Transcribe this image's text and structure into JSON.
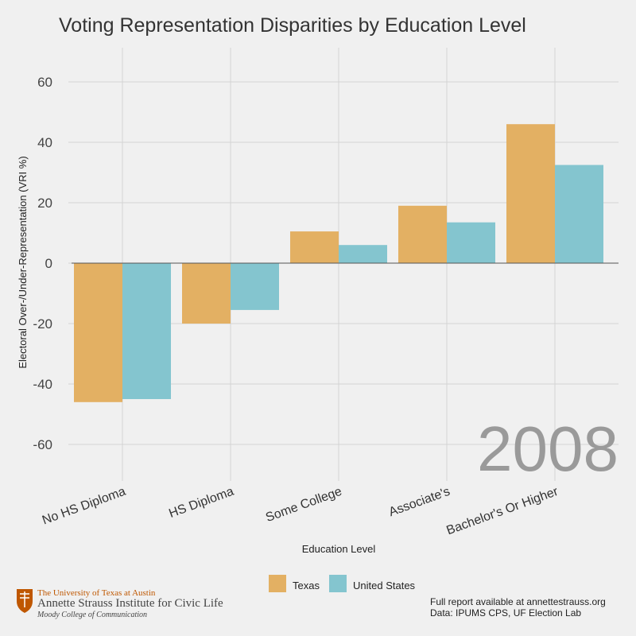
{
  "chart_data": {
    "type": "bar",
    "title": "Voting Representation Disparities by Education Level",
    "xlabel": "Education Level",
    "ylabel": "Electoral Over-/Under-Representation (VRI %)",
    "categories": [
      "No HS Diploma",
      "HS Diploma",
      "Some College",
      "Associate's",
      "Bachelor's Or Higher"
    ],
    "series": [
      {
        "name": "Texas",
        "color": "#e3b063",
        "values": [
          -46,
          -20,
          10.5,
          19,
          46
        ]
      },
      {
        "name": "United States",
        "color": "#84c5cf",
        "values": [
          -45,
          -15.5,
          6,
          13.5,
          32.5
        ]
      }
    ],
    "ylim": [
      -72,
      72
    ],
    "yticks": [
      60,
      40,
      20,
      0,
      -20,
      -40,
      -60
    ],
    "grid": true,
    "legend_position": "bottom",
    "annotation": "2008"
  },
  "footer": {
    "report": "Full report available at annettestrauss.org",
    "source": "Data: IPUMS CPS, UF Election Lab"
  },
  "logo": {
    "line1": "The University of Texas at Austin",
    "line2": "Annette Strauss Institute for Civic Life",
    "line3": "Moody College of Communication",
    "accent_color": "#bf5700"
  }
}
